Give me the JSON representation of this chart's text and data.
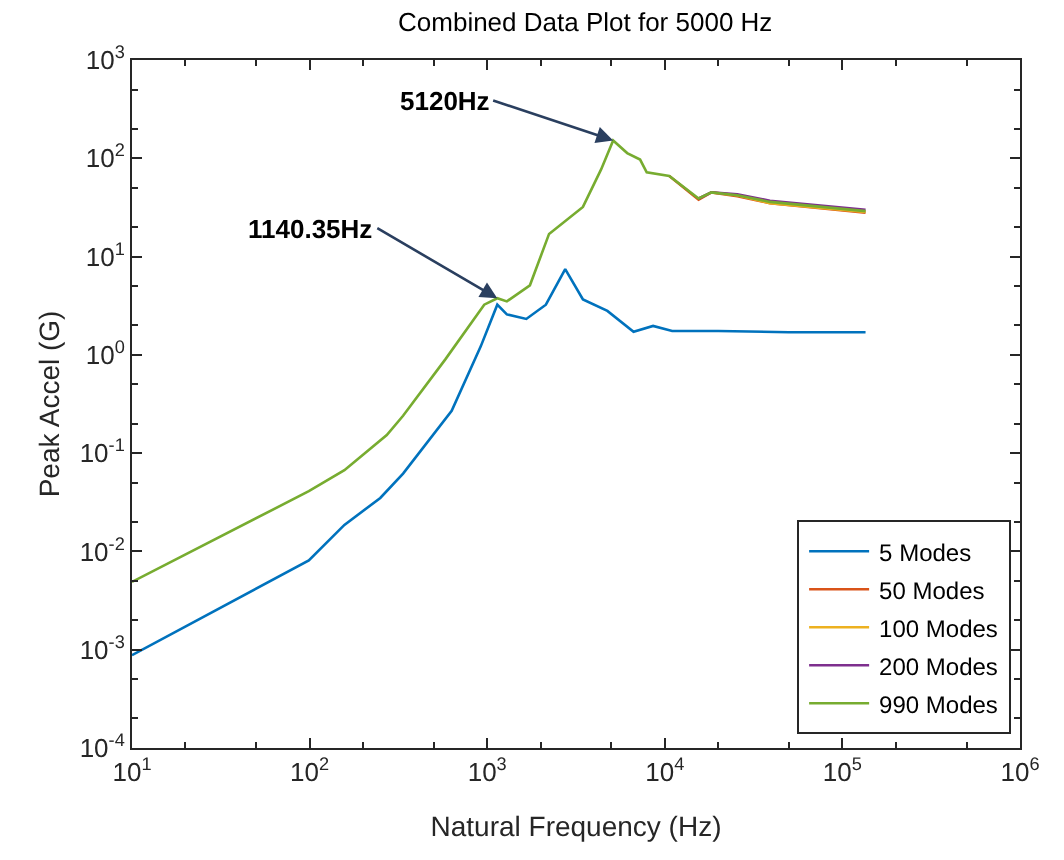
{
  "chart_data": {
    "type": "line",
    "title": "Combined Data Plot for 5000 Hz",
    "xlabel": "Natural Frequency (Hz)",
    "ylabel": "Peak Accel (G)",
    "log": "xy",
    "legend": "bottom right",
    "marker": "none",
    "line_style": "solid",
    "xlim": [
      10,
      1000000
    ],
    "ylim": [
      0.0001,
      1000
    ],
    "xticks": [
      {
        "value": 10,
        "label": "10$^{1}$"
      },
      {
        "value": 100,
        "label": "10$^{2}$"
      },
      {
        "value": 1000,
        "label": "10$^{3}$"
      },
      {
        "value": 10000,
        "label": "10$^{4}$"
      },
      {
        "value": 100000,
        "label": "10$^{5}$"
      },
      {
        "value": 1000000,
        "label": "10$^{6}$"
      }
    ],
    "yticks": [
      {
        "value": 0.0001,
        "label": "10$^{-4}$"
      },
      {
        "value": 0.001,
        "label": "10$^{-3}$"
      },
      {
        "value": 0.01,
        "label": "10$^{-2}$"
      },
      {
        "value": 0.1,
        "label": "10$^{-1}$"
      },
      {
        "value": 1,
        "label": "10$^{0}$"
      },
      {
        "value": 10,
        "label": "10$^{1}$"
      },
      {
        "value": 100,
        "label": "10$^{2}$"
      },
      {
        "value": 1000,
        "label": "10$^{3}$"
      }
    ],
    "series": [
      {
        "name": "5 Modes",
        "color": "#0072bd",
        "x": [
          10,
          99,
          157,
          250,
          336,
          631,
          920,
          1140,
          1290,
          1660,
          2140,
          2750,
          3460,
          4750,
          6670,
          8590,
          11000,
          20000,
          50000,
          135000
        ],
        "values": [
          0.00088,
          0.0081,
          0.0186,
          0.035,
          0.062,
          0.27,
          1.22,
          3.24,
          2.58,
          2.32,
          3.24,
          7.45,
          3.66,
          2.8,
          1.72,
          1.97,
          1.75,
          1.75,
          1.7,
          1.7
        ]
      },
      {
        "name": "50 Modes",
        "color": "#d95319",
        "x": [
          10600,
          15500,
          18300,
          25600,
          39100,
          135000
        ],
        "values": [
          66,
          38,
          45,
          41,
          35,
          28
        ]
      },
      {
        "name": "100 Modes",
        "color": "#edb120",
        "x": [
          18300,
          25600,
          39100,
          135000
        ],
        "values": [
          45,
          42,
          35,
          28.5
        ]
      },
      {
        "name": "200 Modes",
        "color": "#7e2f8e",
        "x": [
          15500,
          18300,
          25600,
          39100,
          135000
        ],
        "values": [
          39,
          45,
          43,
          37,
          30
        ]
      },
      {
        "name": "990 Modes",
        "color": "#77ac30",
        "x": [
          10,
          99,
          157,
          272,
          336,
          581,
          962,
          1140,
          1290,
          1740,
          2230,
          3460,
          4380,
          5120,
          6140,
          7260,
          7910,
          10600,
          15500,
          18300,
          25600,
          39100,
          135000
        ],
        "values": [
          0.0049,
          0.041,
          0.067,
          0.153,
          0.24,
          0.9,
          3.24,
          3.77,
          3.5,
          5.1,
          17,
          32,
          77,
          152,
          113,
          97,
          72,
          66,
          39,
          45,
          42,
          36,
          29
        ]
      }
    ],
    "annotations": [
      {
        "text": "1140.35Hz",
        "x": 1140,
        "y": 3.77
      },
      {
        "text": "5120Hz",
        "x": 5120,
        "y": 152
      }
    ]
  }
}
